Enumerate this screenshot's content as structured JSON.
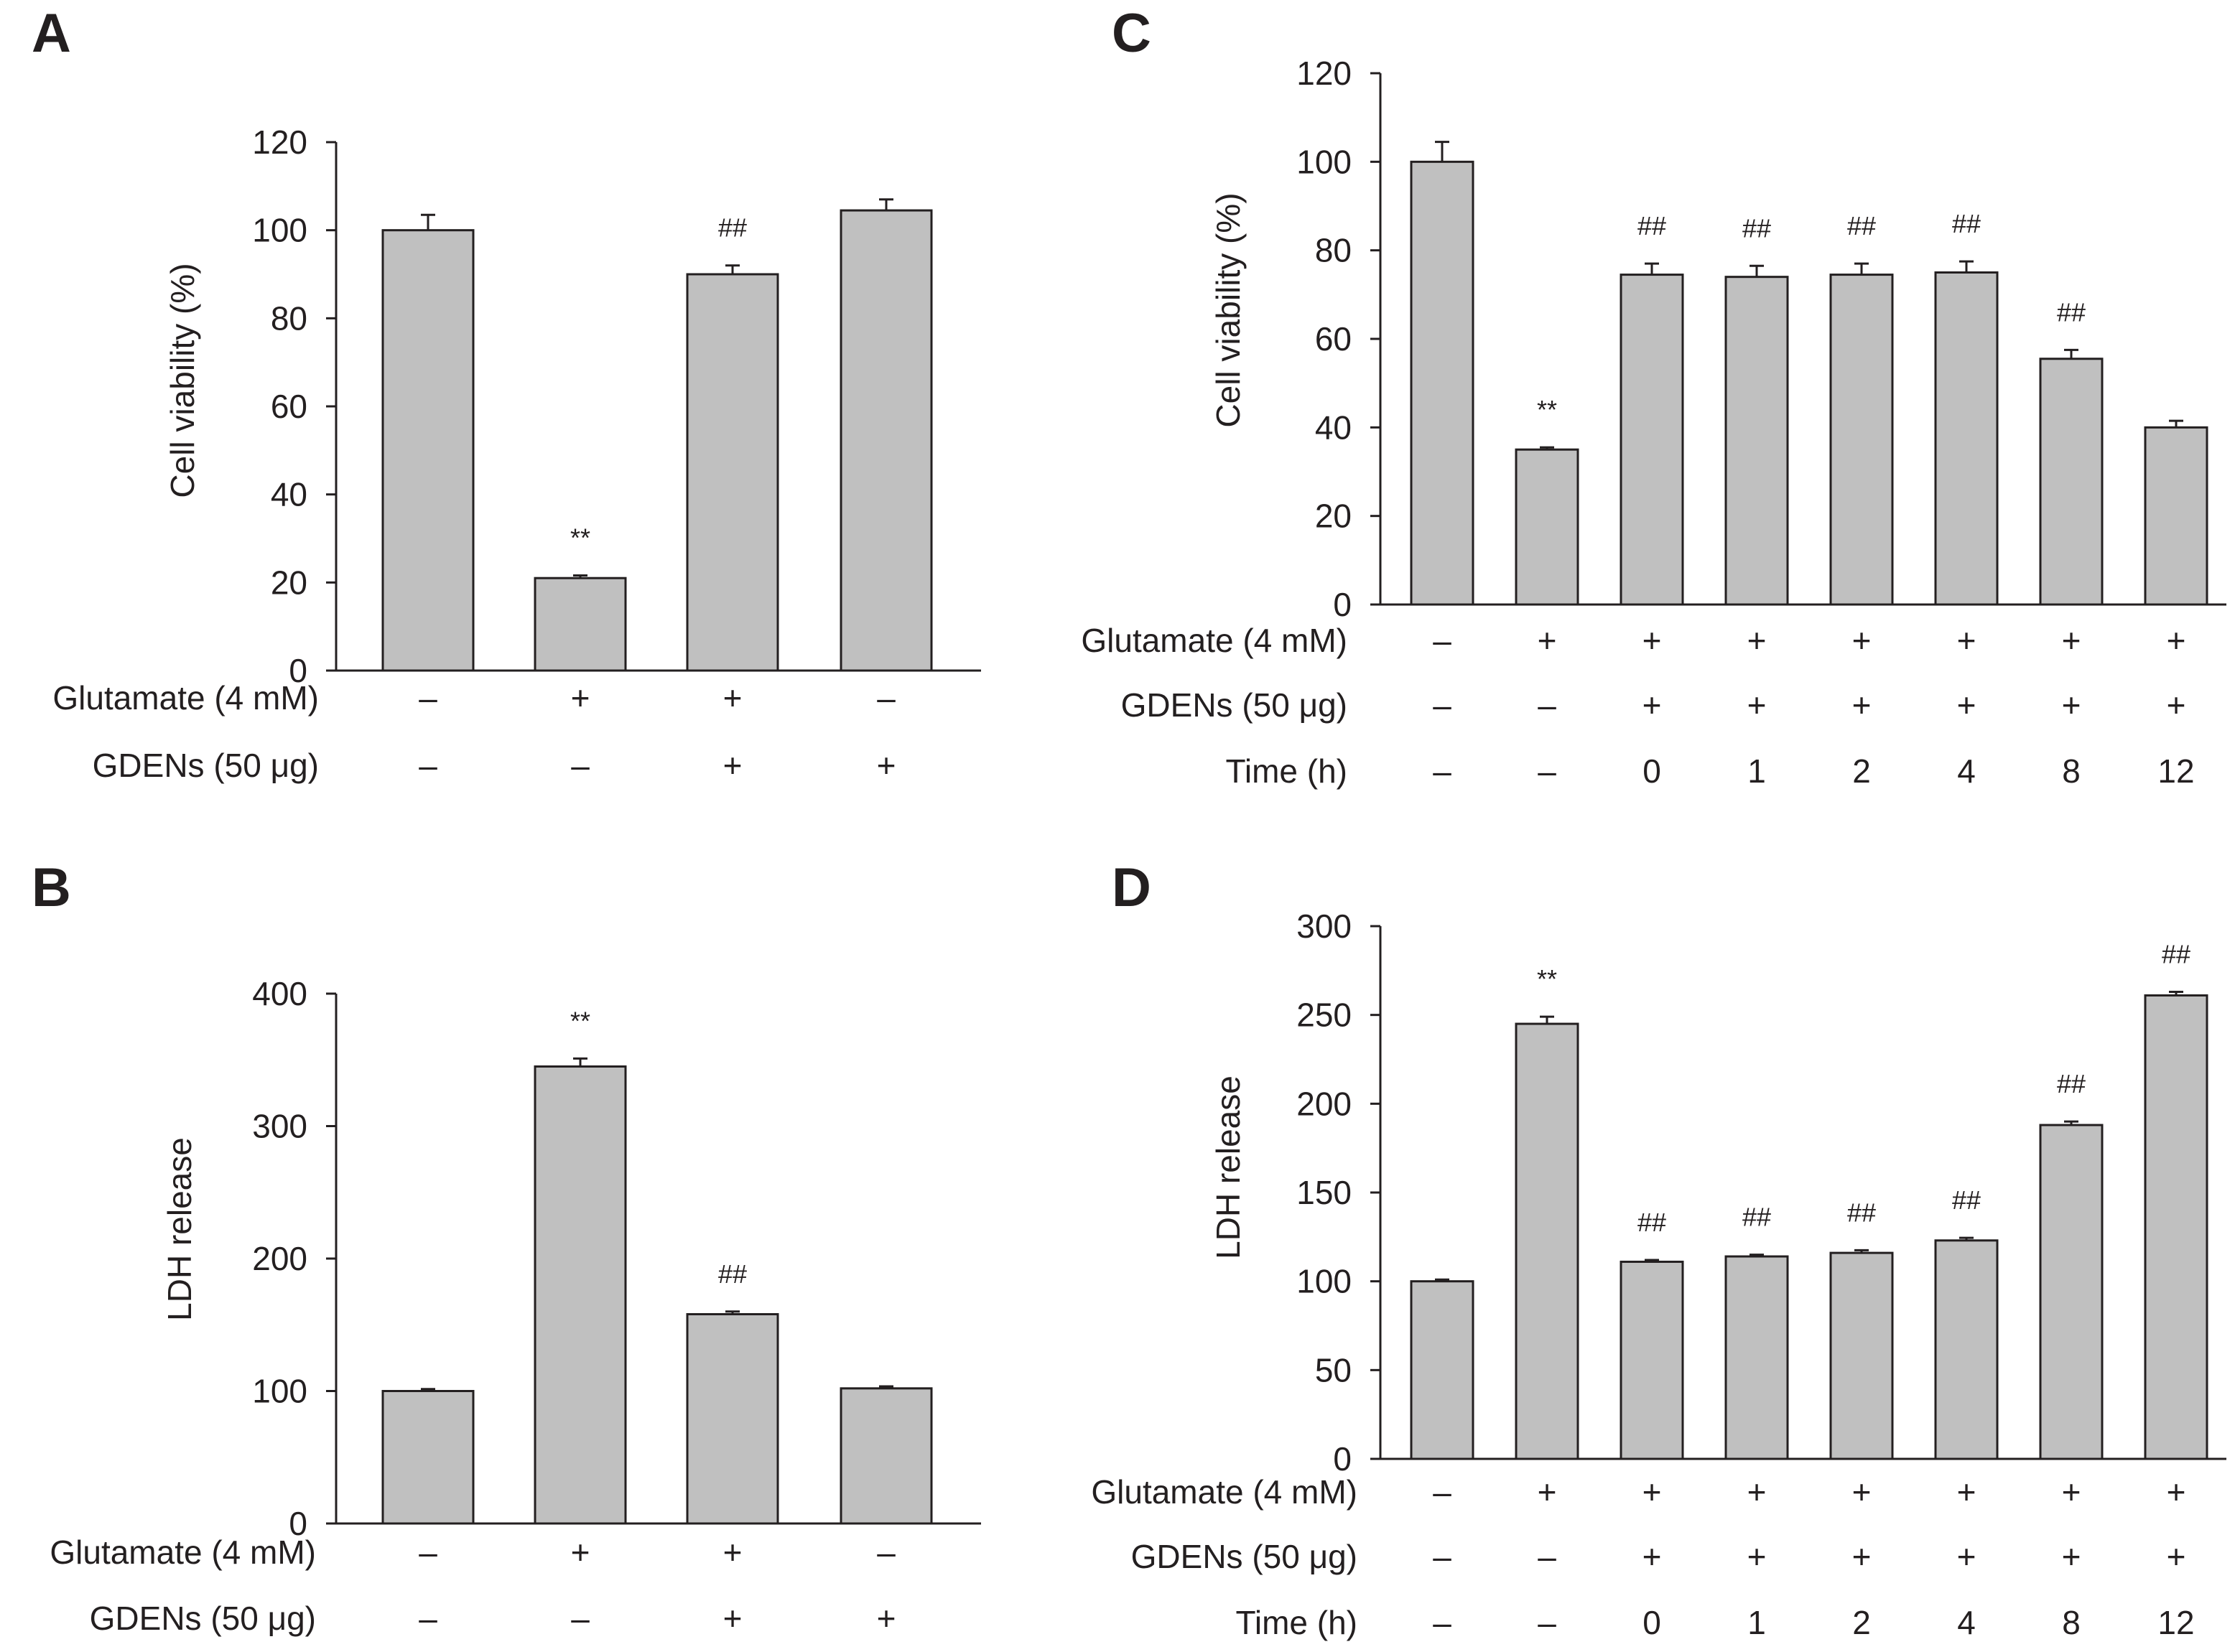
{
  "chart_data": [
    {
      "panel": "A",
      "type": "bar",
      "ylabel": "Cell viability (%)",
      "ylim": [
        0,
        120
      ],
      "yticks": [
        0,
        20,
        40,
        60,
        80,
        100,
        120
      ],
      "values": [
        100,
        21,
        90,
        104.5
      ],
      "errors": [
        3.5,
        0.6,
        2,
        2.5
      ],
      "significance": [
        "",
        "**",
        "##",
        ""
      ],
      "conditions": [
        {
          "label": "Glutamate (4 mM)",
          "values": [
            "–",
            "+",
            "+",
            "–"
          ]
        },
        {
          "label": "GDENs (50 μg)",
          "values": [
            "–",
            "–",
            "+",
            "+"
          ]
        }
      ]
    },
    {
      "panel": "B",
      "type": "bar",
      "ylabel": "LDH release",
      "ylim": [
        0,
        400
      ],
      "yticks": [
        0,
        100,
        200,
        300,
        400
      ],
      "values": [
        100,
        345,
        158,
        102
      ],
      "errors": [
        1.5,
        6,
        2,
        1.5
      ],
      "significance": [
        "",
        "**",
        "##",
        ""
      ],
      "conditions": [
        {
          "label": "Glutamate (4 mM)",
          "values": [
            "–",
            "+",
            "+",
            "–"
          ]
        },
        {
          "label": "GDENs (50 μg)",
          "values": [
            "–",
            "–",
            "+",
            "+"
          ]
        }
      ]
    },
    {
      "panel": "C",
      "type": "bar",
      "ylabel": "Cell viability (%)",
      "ylim": [
        0,
        120
      ],
      "yticks": [
        0,
        20,
        40,
        60,
        80,
        100,
        120
      ],
      "values": [
        100,
        35,
        74.5,
        74,
        74.5,
        75,
        55.5,
        40
      ],
      "errors": [
        4.5,
        0.5,
        2.5,
        2.5,
        2.5,
        2.5,
        2,
        1.5
      ],
      "significance": [
        "",
        "**",
        "##",
        "##",
        "##",
        "##",
        "##",
        ""
      ],
      "conditions": [
        {
          "label": "Glutamate (4 mM)",
          "values": [
            "–",
            "+",
            "+",
            "+",
            "+",
            "+",
            "+",
            "+"
          ]
        },
        {
          "label": "GDENs (50 μg)",
          "values": [
            "–",
            "–",
            "+",
            "+",
            "+",
            "+",
            "+",
            "+"
          ]
        },
        {
          "label": "Time (h)",
          "values": [
            "–",
            "–",
            "0",
            "1",
            "2",
            "4",
            "8",
            "12"
          ]
        }
      ]
    },
    {
      "panel": "D",
      "type": "bar",
      "ylabel": "LDH release",
      "ylim": [
        0,
        300
      ],
      "yticks": [
        0,
        50,
        100,
        150,
        200,
        250,
        300
      ],
      "values": [
        100,
        245,
        111,
        114,
        116,
        123,
        188,
        261
      ],
      "errors": [
        1,
        4,
        1,
        1,
        1.5,
        1.5,
        2,
        2
      ],
      "significance": [
        "",
        "**",
        "##",
        "##",
        "##",
        "##",
        "##",
        "##"
      ],
      "conditions": [
        {
          "label": "Glutamate (4 mM)",
          "values": [
            "–",
            "+",
            "+",
            "+",
            "+",
            "+",
            "+",
            "+"
          ]
        },
        {
          "label": "GDENs (50 μg)",
          "values": [
            "–",
            "–",
            "+",
            "+",
            "+",
            "+",
            "+",
            "+"
          ]
        },
        {
          "label": "Time (h)",
          "values": [
            "–",
            "–",
            "0",
            "1",
            "2",
            "4",
            "8",
            "12"
          ]
        }
      ]
    }
  ]
}
